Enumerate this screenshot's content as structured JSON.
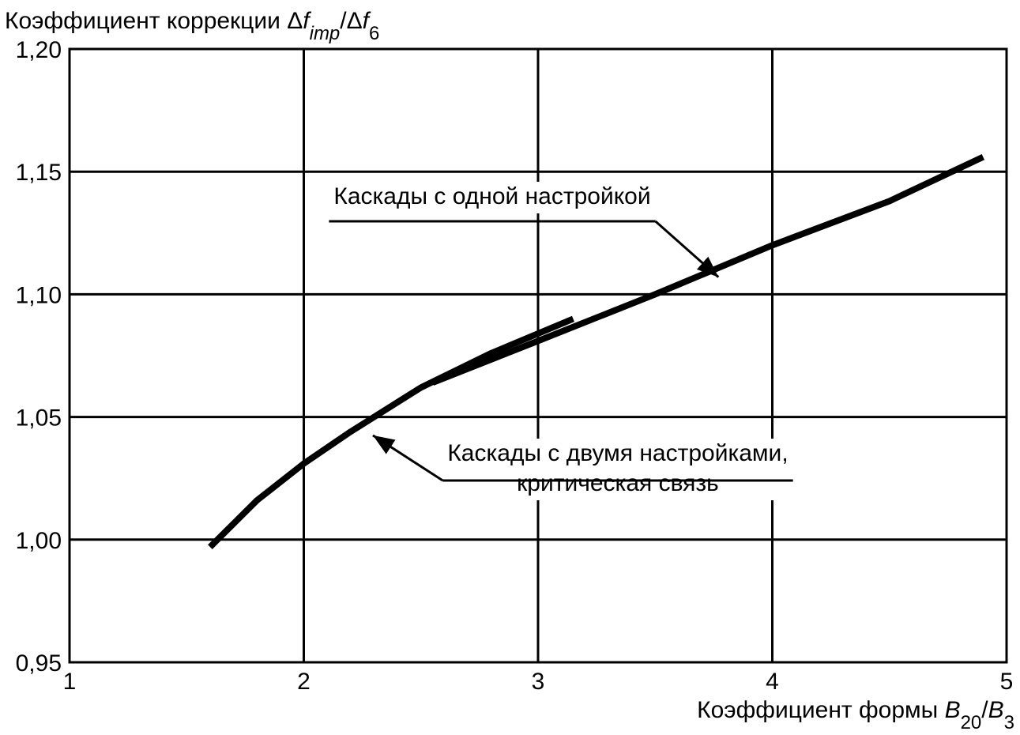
{
  "chart_data": {
    "type": "line",
    "ylabel": [
      {
        "text": "Коэффициент коррекции Δ"
      },
      {
        "text": "f",
        "style": "italic"
      },
      {
        "text": "imp",
        "style": "italic-sub"
      },
      {
        "text": "/Δ"
      },
      {
        "text": "f",
        "style": "italic"
      },
      {
        "text": "6",
        "style": "sub"
      }
    ],
    "xlabel": [
      {
        "text": "Коэффициент формы "
      },
      {
        "text": "B",
        "style": "italic"
      },
      {
        "text": "20",
        "style": "sub"
      },
      {
        "text": "/"
      },
      {
        "text": "B",
        "style": "italic"
      },
      {
        "text": "3",
        "style": "sub"
      }
    ],
    "xlim": [
      1,
      5
    ],
    "xticks": [
      1,
      2,
      3,
      4,
      5
    ],
    "ylim": [
      0.95,
      1.2
    ],
    "yticks": [
      {
        "value": 0.95,
        "label": "0,95"
      },
      {
        "value": 1.0,
        "label": "1,00"
      },
      {
        "value": 1.05,
        "label": "1,05"
      },
      {
        "value": 1.1,
        "label": "1,10"
      },
      {
        "value": 1.15,
        "label": "1,15"
      },
      {
        "value": 1.2,
        "label": "1,20"
      }
    ],
    "grid": true,
    "series": [
      {
        "color": "#000000",
        "x": [
          1.6,
          1.8,
          2.0,
          2.2,
          2.5,
          2.8,
          3.15
        ],
        "values": [
          0.997,
          1.016,
          1.031,
          1.044,
          1.062,
          1.076,
          1.09
        ]
      },
      {
        "color": "#000000",
        "x": [
          2.55,
          3.0,
          3.5,
          4.0,
          4.5,
          4.9
        ],
        "values": [
          1.064,
          1.081,
          1.1,
          1.12,
          1.138,
          1.156
        ]
      }
    ],
    "annotations": [
      {
        "lines": [
          "Каскады с одной настройкой"
        ],
        "arrow": [
          3.77,
          1.107
        ]
      },
      {
        "lines": [
          "Каскады с двумя настройками,",
          "критическая связь"
        ],
        "arrow": [
          2.295,
          1.0425
        ]
      }
    ]
  }
}
